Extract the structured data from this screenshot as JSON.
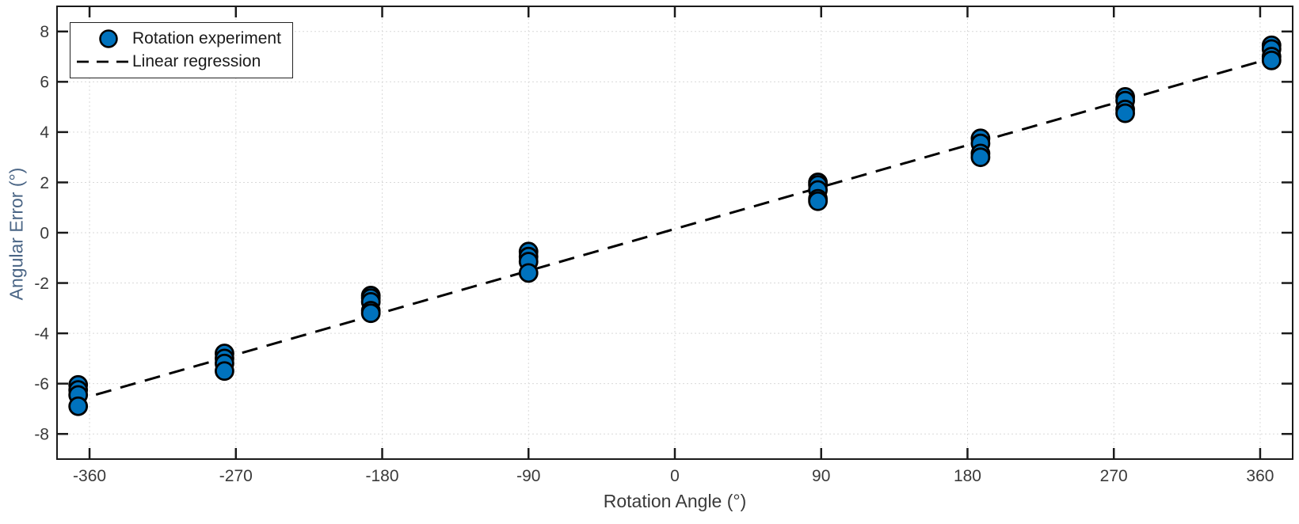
{
  "colors": {
    "marker_fill": "#0072BD",
    "marker_edge": "#000000",
    "regression_line": "#000000",
    "grid": "#d9d9d9",
    "axis_box": "#1a1a1a",
    "tick_label": "#3a3a3a",
    "x_axis_label_color": "#3a3a3a",
    "y_axis_label_color": "#4a6585",
    "legend_border": "#222222",
    "background": "#ffffff"
  },
  "chart_data": {
    "type": "scatter",
    "title": "",
    "xlabel": "Rotation Angle (°)",
    "ylabel": "Angular Error (°)",
    "xlim": [
      -380,
      380
    ],
    "ylim": [
      -9,
      9
    ],
    "xticks": [
      -360,
      -270,
      -180,
      -90,
      0,
      90,
      180,
      270,
      360
    ],
    "yticks": [
      -8,
      -6,
      -4,
      -2,
      0,
      2,
      4,
      6,
      8
    ],
    "grid": true,
    "grid_style": "dotted",
    "legend": {
      "position": "top-left",
      "entries": [
        "Rotation experiment",
        "Linear regression"
      ]
    },
    "series": [
      {
        "name": "Rotation experiment",
        "type": "scatter",
        "marker": "circle",
        "fill": "#0072BD",
        "edge": "#000000",
        "points": [
          [
            -367,
            -6.05
          ],
          [
            -367,
            -6.25
          ],
          [
            -367,
            -6.45
          ],
          [
            -367,
            -6.9
          ],
          [
            -277,
            -4.8
          ],
          [
            -277,
            -5.0
          ],
          [
            -277,
            -5.2
          ],
          [
            -277,
            -5.5
          ],
          [
            -187,
            -2.5
          ],
          [
            -187,
            -2.6
          ],
          [
            -187,
            -2.75
          ],
          [
            -187,
            -3.1
          ],
          [
            -187,
            -3.2
          ],
          [
            -90,
            -0.75
          ],
          [
            -90,
            -0.95
          ],
          [
            -90,
            -1.15
          ],
          [
            -90,
            -1.6
          ],
          [
            88,
            2.0
          ],
          [
            88,
            1.9
          ],
          [
            88,
            1.7
          ],
          [
            88,
            1.35
          ],
          [
            88,
            1.25
          ],
          [
            188,
            3.75
          ],
          [
            188,
            3.55
          ],
          [
            188,
            3.15
          ],
          [
            188,
            3.0
          ],
          [
            277,
            5.4
          ],
          [
            277,
            5.25
          ],
          [
            277,
            4.9
          ],
          [
            277,
            4.75
          ],
          [
            367,
            7.45
          ],
          [
            367,
            7.3
          ],
          [
            367,
            7.0
          ],
          [
            367,
            6.85
          ]
        ]
      },
      {
        "name": "Linear regression",
        "type": "line",
        "style": "dashed",
        "color": "#000000",
        "slope": 0.0185,
        "intercept": 0.15,
        "x_range": [
          -371,
          369
        ]
      }
    ]
  }
}
